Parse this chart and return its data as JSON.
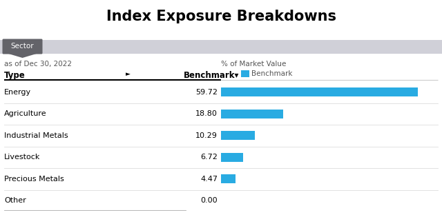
{
  "title": "Index Exposure Breakdowns",
  "sector_label": "Sector",
  "date_label": "as of Dec 30, 2022",
  "pct_label": "% of Market Value",
  "col_type": "Type",
  "col_benchmark": "Benchmark▾",
  "legend_label": "Benchmark",
  "categories": [
    "Energy",
    "Agriculture",
    "Industrial Metals",
    "Livestock",
    "Precious Metals",
    "Other"
  ],
  "values": [
    59.72,
    18.8,
    10.29,
    6.72,
    4.47,
    0.0
  ],
  "bar_color": "#29ABE2",
  "background_color": "#ffffff",
  "header_bg": "#d0d0d8",
  "sector_btn_color": "#636369",
  "max_value": 65,
  "title_fontsize": 15,
  "row_fontsize": 8,
  "header_fontsize": 8.5,
  "small_fontsize": 7.5,
  "fig_width": 6.4,
  "fig_height": 3.15,
  "dpi": 100
}
